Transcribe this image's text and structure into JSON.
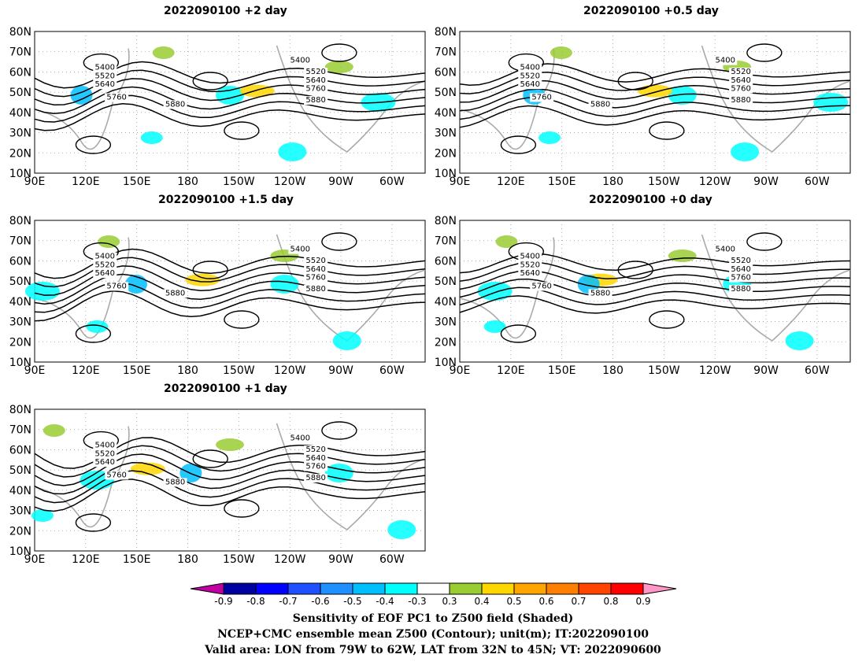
{
  "panels": [
    {
      "id": "p2",
      "title": "2022090100 +2 day"
    },
    {
      "id": "p05",
      "title": "2022090100 +0.5 day"
    },
    {
      "id": "p15",
      "title": "2022090100 +1.5 day"
    },
    {
      "id": "p0",
      "title": "2022090100 +0 day"
    },
    {
      "id": "p1",
      "title": "2022090100 +1 day"
    }
  ],
  "axes": {
    "lat_labels": [
      "80N",
      "70N",
      "60N",
      "50N",
      "40N",
      "30N",
      "20N",
      "10N"
    ],
    "lon_labels": [
      "90E",
      "120E",
      "150E",
      "180",
      "150W",
      "120W",
      "90W",
      "60W"
    ]
  },
  "contour_levels": [
    "5400",
    "5520",
    "5640",
    "5760",
    "5880"
  ],
  "colorbar": {
    "ticks": [
      "-0.9",
      "-0.8",
      "-0.7",
      "-0.6",
      "-0.5",
      "-0.4",
      "-0.3",
      "0.3",
      "0.4",
      "0.5",
      "0.6",
      "0.7",
      "0.8",
      "0.9"
    ],
    "colors": [
      "#0000a0",
      "#0000ff",
      "#1e50ff",
      "#1e90ff",
      "#00bfff",
      "#00ffff",
      "#ffffff",
      "#9acd32",
      "#ffd700",
      "#ffa500",
      "#ff7f00",
      "#ff4500",
      "#ff0000"
    ],
    "low_color": "#c000a0",
    "high_color": "#ff96c8"
  },
  "caption": {
    "line1": "Sensitivity of EOF PC1 to Z500 field (Shaded)",
    "line2": "NCEP+CMC ensemble mean Z500 (Contour); unit(m); IT:2022090100",
    "line3": "Valid area: LON from 79W to 62W, LAT from 32N to 45N; VT: 2022090600"
  }
}
